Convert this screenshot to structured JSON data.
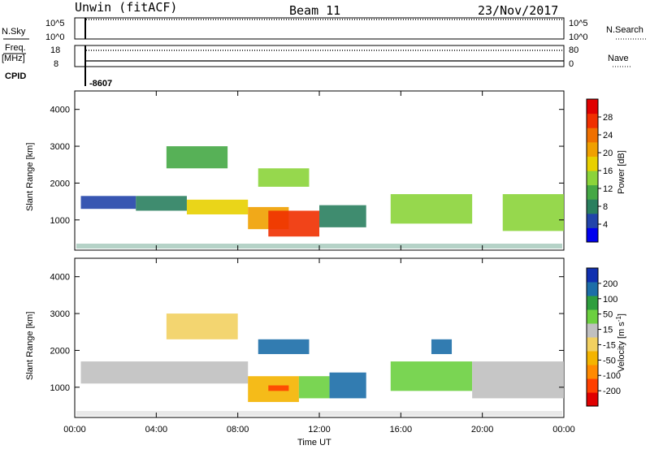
{
  "header": {
    "station": "Unwin (fitACF)",
    "beam": "Beam 11",
    "date": "23/Nov/2017"
  },
  "top_panel": {
    "left_label_1": "N.Sky",
    "left_label_2": "Freq.",
    "left_label_2b": "[MHz]",
    "left_label_3": "CPID",
    "right_label_1": "N.Search",
    "right_label_2": "Nave",
    "left_ticks_sky": [
      "10^5",
      "10^0"
    ],
    "right_ticks_sky": [
      "10^5",
      "10^0"
    ],
    "left_ticks_freq": [
      "18",
      "8"
    ],
    "right_ticks_nave": [
      "80",
      "0"
    ],
    "cpid_value": "-8607"
  },
  "colors": {
    "power": [
      "#0000ee",
      "#2244aa",
      "#2a7f5f",
      "#45a845",
      "#8bd43a",
      "#e8d000",
      "#f0a000",
      "#f07000",
      "#f03000",
      "#e00000"
    ],
    "velocity": [
      "#e00000",
      "#ff4000",
      "#ff8a00",
      "#f4b400",
      "#f2d060",
      "#c0c0c0",
      "#6cd040",
      "#2e9e3e",
      "#1c6ea8",
      "#1030b0"
    ]
  },
  "power_scale": {
    "label": "Power [dB]",
    "ticks": [
      "28",
      "24",
      "20",
      "16",
      "12",
      "8",
      "4"
    ]
  },
  "velocity_scale": {
    "label": "Velocity [m s",
    "label_sup": "-1",
    "label_end": "]",
    "ticks": [
      "200",
      "100",
      "50",
      "15",
      "-15",
      "-50",
      "-100",
      "-200"
    ]
  },
  "x_axis": {
    "label": "Time UT",
    "ticks": [
      "00:00",
      "04:00",
      "08:00",
      "12:00",
      "16:00",
      "20:00",
      "00:00"
    ]
  },
  "chart_data": [
    {
      "type": "heatmap",
      "title": "Power",
      "ylabel": "Slant Range [km]",
      "xlabel": "",
      "x_range_hours": [
        0,
        24
      ],
      "ylim": [
        180,
        4500
      ],
      "yticks": [
        "1000",
        "2000",
        "3000",
        "4000"
      ],
      "colorbar_label": "Power [dB]",
      "colorbar_ticks": [
        28,
        24,
        20,
        16,
        12,
        8,
        4
      ],
      "regions": [
        {
          "t": [
            0.3,
            3.0
          ],
          "r": [
            1300,
            1650
          ],
          "v": 6
        },
        {
          "t": [
            3.0,
            5.5
          ],
          "r": [
            1250,
            1650
          ],
          "v": 10
        },
        {
          "t": [
            5.5,
            8.5
          ],
          "r": [
            1150,
            1550
          ],
          "v": 17
        },
        {
          "t": [
            8.5,
            10.5
          ],
          "r": [
            750,
            1350
          ],
          "v": 22
        },
        {
          "t": [
            9.5,
            12.0
          ],
          "r": [
            550,
            1250
          ],
          "v": 28
        },
        {
          "t": [
            12.0,
            14.3
          ],
          "r": [
            800,
            1400
          ],
          "v": 10
        },
        {
          "t": [
            4.5,
            7.5
          ],
          "r": [
            2400,
            3000
          ],
          "v": 12
        },
        {
          "t": [
            9.0,
            11.5
          ],
          "r": [
            1900,
            2400
          ],
          "v": 16
        },
        {
          "t": [
            15.5,
            19.5
          ],
          "r": [
            900,
            1700
          ],
          "v": 14
        },
        {
          "t": [
            21.0,
            24.0
          ],
          "r": [
            700,
            1700
          ],
          "v": 16
        }
      ]
    },
    {
      "type": "heatmap",
      "title": "Velocity",
      "ylabel": "Slant Range [km]",
      "xlabel": "Time UT",
      "x_range_hours": [
        0,
        24
      ],
      "ylim": [
        180,
        4500
      ],
      "yticks": [
        "1000",
        "2000",
        "3000",
        "4000"
      ],
      "colorbar_label": "Velocity [m s-1]",
      "colorbar_ticks": [
        200,
        100,
        50,
        15,
        -15,
        -50,
        -100,
        -200
      ],
      "regions": [
        {
          "t": [
            0.3,
            8.5
          ],
          "r": [
            1100,
            1700
          ],
          "v": 0
        },
        {
          "t": [
            4.5,
            8.0
          ],
          "r": [
            2300,
            3000
          ],
          "v": -40
        },
        {
          "t": [
            8.5,
            11.0
          ],
          "r": [
            600,
            1300
          ],
          "v": -90
        },
        {
          "t": [
            9.5,
            10.5
          ],
          "r": [
            900,
            1050
          ],
          "v": -220
        },
        {
          "t": [
            11.0,
            12.5
          ],
          "r": [
            700,
            1300
          ],
          "v": 40
        },
        {
          "t": [
            12.5,
            14.3
          ],
          "r": [
            700,
            1400
          ],
          "v": 180
        },
        {
          "t": [
            9.0,
            11.5
          ],
          "r": [
            1900,
            2300
          ],
          "v": 150
        },
        {
          "t": [
            15.5,
            19.5
          ],
          "r": [
            900,
            1700
          ],
          "v": 40
        },
        {
          "t": [
            17.5,
            18.5
          ],
          "r": [
            1900,
            2300
          ],
          "v": 180
        },
        {
          "t": [
            19.5,
            24.0
          ],
          "r": [
            700,
            1700
          ],
          "v": 0
        }
      ]
    }
  ]
}
